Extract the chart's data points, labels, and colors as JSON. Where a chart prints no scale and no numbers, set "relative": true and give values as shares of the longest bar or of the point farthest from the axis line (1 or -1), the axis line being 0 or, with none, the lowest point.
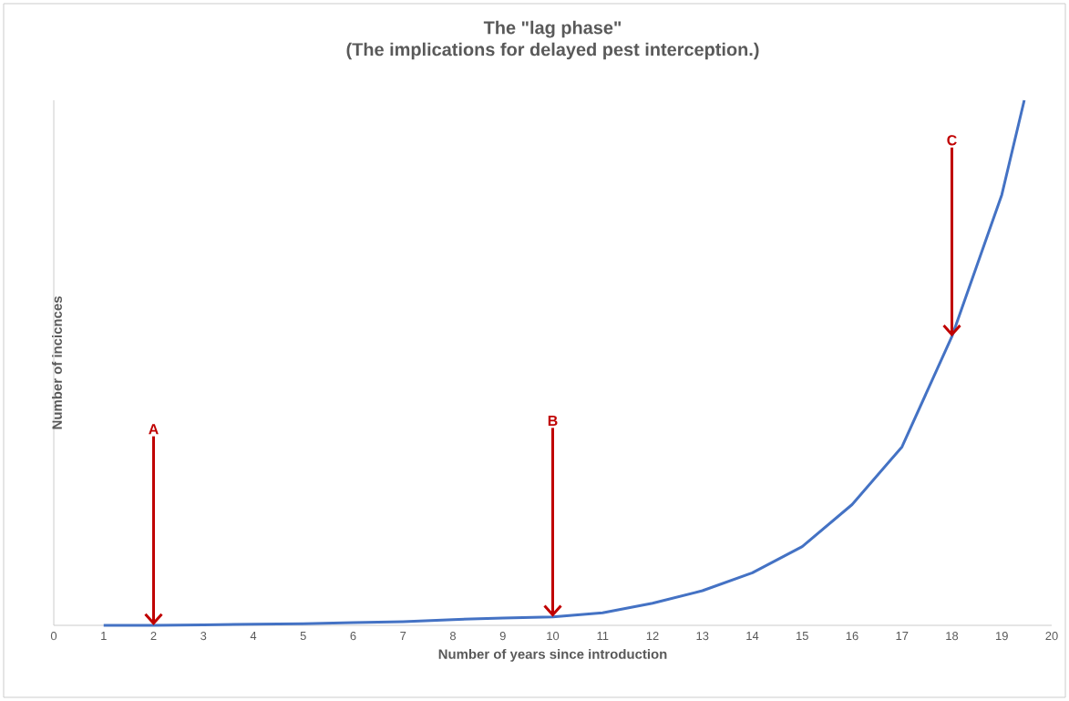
{
  "chart_data": {
    "type": "line",
    "title": "The \"lag phase\"",
    "subtitle": "(The implications for delayed pest interception.)",
    "xlabel": "Number of years since introduction",
    "ylabel": "Number of incicnces",
    "relative": true,
    "color": "#4472c4",
    "x": [
      1,
      2,
      3,
      4,
      5,
      6,
      7,
      8,
      9,
      10,
      11,
      12,
      13,
      14,
      15,
      16,
      17,
      18,
      19,
      19.45
    ],
    "values": [
      0,
      0,
      0.001,
      0.002,
      0.003,
      0.005,
      0.007,
      0.011,
      0.014,
      0.016,
      0.024,
      0.042,
      0.066,
      0.1,
      0.15,
      0.23,
      0.34,
      0.55,
      0.82,
      1
    ],
    "xlim": [
      0,
      20
    ],
    "xticks": [
      0,
      1,
      2,
      3,
      4,
      5,
      6,
      7,
      8,
      9,
      10,
      11,
      12,
      13,
      14,
      15,
      16,
      17,
      18,
      19,
      20
    ],
    "annotations": [
      {
        "text": "A",
        "x": 2,
        "y": 0
      },
      {
        "text": "B",
        "x": 10,
        "y": 0.016
      },
      {
        "text": "C",
        "x": 18,
        "y": 0.55
      }
    ]
  }
}
